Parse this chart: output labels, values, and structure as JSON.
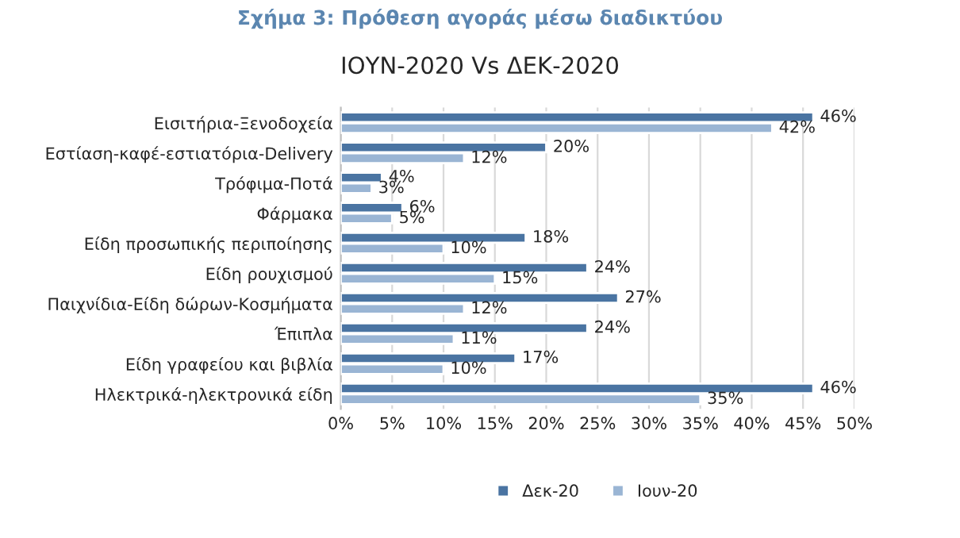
{
  "chart_data": {
    "type": "bar",
    "orientation": "horizontal",
    "title": "Σχήμα 3: Πρόθεση αγοράς μέσω διαδικτύου",
    "subtitle": "ΙΟΥΝ-2020 Vs ΔΕΚ-2020",
    "categories": [
      "Εισιτήρια-Ξενοδοχεία",
      "Εστίαση-καφέ-εστιατόρια-Delivery",
      "Τρόφιμα-Ποτά",
      "Φάρμακα",
      "Είδη προσωπικής περιποίησης",
      "Είδη ρουχισμού",
      "Παιχνίδια-Είδη δώρων-Κοσμήματα",
      "Έπιπλα",
      "Είδη γραφείου και βιβλία",
      "Ηλεκτρικά-ηλεκτρονικά είδη"
    ],
    "series": [
      {
        "name": "Δεκ-20",
        "color": "#4a74a2",
        "values": [
          46,
          20,
          4,
          6,
          18,
          24,
          27,
          24,
          17,
          46
        ],
        "value_labels": [
          "46%",
          "20%",
          "4%",
          "6%",
          "18%",
          "24%",
          "27%",
          "24%",
          "17%",
          "46%"
        ]
      },
      {
        "name": "Ιουν-20",
        "color": "#9ab5d4",
        "values": [
          42,
          12,
          3,
          5,
          10,
          15,
          12,
          11,
          10,
          35
        ],
        "value_labels": [
          "42%",
          "12%",
          "3%",
          "5%",
          "10%",
          "15%",
          "12%",
          "11%",
          "10%",
          "35%"
        ]
      }
    ],
    "xlim": [
      0,
      50
    ],
    "xticks": [
      {
        "value": 0,
        "label": "0%"
      },
      {
        "value": 5,
        "label": "5%"
      },
      {
        "value": 10,
        "label": "10%"
      },
      {
        "value": 15,
        "label": "15%"
      },
      {
        "value": 20,
        "label": "20%"
      },
      {
        "value": 25,
        "label": "25%"
      },
      {
        "value": 30,
        "label": "30%"
      },
      {
        "value": 35,
        "label": "35%"
      },
      {
        "value": 40,
        "label": "40%"
      },
      {
        "value": 45,
        "label": "45%"
      },
      {
        "value": 50,
        "label": "50%"
      }
    ],
    "grid": "x",
    "legend": "bottom"
  }
}
